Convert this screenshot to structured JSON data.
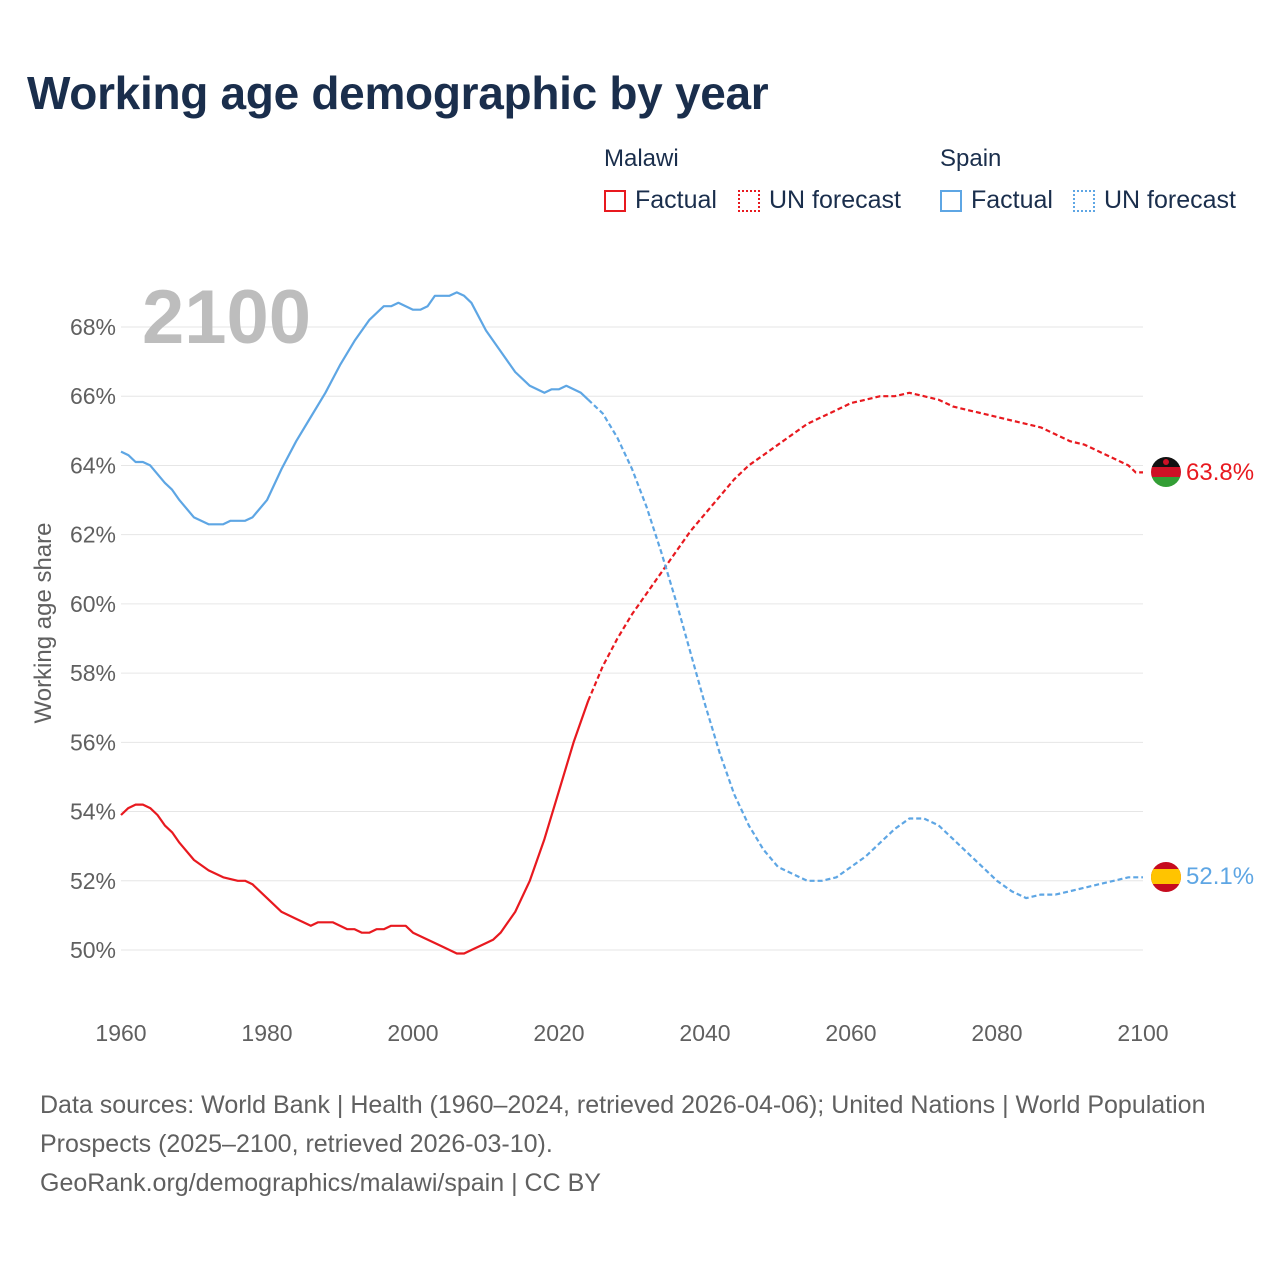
{
  "title": "Working age demographic by year",
  "legend": {
    "malawi": {
      "name": "Malawi",
      "factual": "Factual",
      "forecast": "UN forecast",
      "color": "#e8191f"
    },
    "spain": {
      "name": "Spain",
      "factual": "Factual",
      "forecast": "UN forecast",
      "color": "#5ea6e4"
    }
  },
  "footer": {
    "sources": "Data sources: World Bank | Health (1960–2024, retrieved 2026-04-06); United Nations | World Population Prospects (2025–2100, retrieved 2026-03-10).",
    "credit": "GeoRank.org/demographics/malawi/spain | CC BY"
  },
  "chart_data": {
    "type": "line",
    "year_label": "2100",
    "ylabel": "Working age share",
    "xlim": [
      1960,
      2100
    ],
    "ylim": [
      49,
      69.5
    ],
    "x_ticks": [
      "1960",
      "1980",
      "2000",
      "2020",
      "2040",
      "2060",
      "2080",
      "2100"
    ],
    "y_ticks": [
      "50%",
      "52%",
      "54%",
      "56%",
      "58%",
      "60%",
      "62%",
      "64%",
      "66%",
      "68%"
    ],
    "grid": true,
    "series": [
      {
        "name": "Malawi",
        "color": "#e8191f",
        "end_label": "63.8%",
        "end_value": 63.8,
        "factual": {
          "x": [
            1960,
            1961,
            1962,
            1963,
            1964,
            1965,
            1966,
            1967,
            1968,
            1970,
            1972,
            1974,
            1976,
            1977,
            1978,
            1980,
            1982,
            1984,
            1986,
            1987,
            1988,
            1989,
            1990,
            1991,
            1992,
            1993,
            1994,
            1995,
            1996,
            1997,
            1998,
            1999,
            2000,
            2002,
            2004,
            2006,
            2007,
            2008,
            2010,
            2011,
            2012,
            2013,
            2014,
            2016,
            2018,
            2020,
            2022,
            2024
          ],
          "y": [
            53.9,
            54.1,
            54.2,
            54.2,
            54.1,
            53.9,
            53.6,
            53.4,
            53.1,
            52.6,
            52.3,
            52.1,
            52.0,
            52.0,
            51.9,
            51.5,
            51.1,
            50.9,
            50.7,
            50.8,
            50.8,
            50.8,
            50.7,
            50.6,
            50.6,
            50.5,
            50.5,
            50.6,
            50.6,
            50.7,
            50.7,
            50.7,
            50.5,
            50.3,
            50.1,
            49.9,
            49.9,
            50.0,
            50.2,
            50.3,
            50.5,
            50.8,
            51.1,
            52.0,
            53.2,
            54.6,
            56.0,
            57.2
          ]
        },
        "forecast": {
          "x": [
            2024,
            2026,
            2028,
            2030,
            2032,
            2034,
            2036,
            2038,
            2040,
            2042,
            2044,
            2046,
            2048,
            2050,
            2052,
            2054,
            2056,
            2058,
            2060,
            2062,
            2064,
            2066,
            2068,
            2070,
            2072,
            2074,
            2076,
            2078,
            2080,
            2082,
            2084,
            2086,
            2088,
            2090,
            2092,
            2094,
            2096,
            2098,
            2099,
            2100
          ],
          "y": [
            57.2,
            58.2,
            59.0,
            59.7,
            60.3,
            60.9,
            61.5,
            62.1,
            62.6,
            63.1,
            63.6,
            64.0,
            64.3,
            64.6,
            64.9,
            65.2,
            65.4,
            65.6,
            65.8,
            65.9,
            66.0,
            66.0,
            66.1,
            66.0,
            65.9,
            65.7,
            65.6,
            65.5,
            65.4,
            65.3,
            65.2,
            65.1,
            64.9,
            64.7,
            64.6,
            64.4,
            64.2,
            64.0,
            63.8,
            63.8
          ]
        }
      },
      {
        "name": "Spain",
        "color": "#5ea6e4",
        "end_label": "52.1%",
        "end_value": 52.1,
        "factual": {
          "x": [
            1960,
            1961,
            1962,
            1963,
            1964,
            1966,
            1967,
            1968,
            1970,
            1972,
            1974,
            1975,
            1977,
            1978,
            1980,
            1982,
            1984,
            1986,
            1988,
            1990,
            1992,
            1994,
            1996,
            1997,
            1998,
            1999,
            2000,
            2001,
            2002,
            2003,
            2004,
            2005,
            2006,
            2007,
            2008,
            2010,
            2012,
            2014,
            2016,
            2018,
            2019,
            2020,
            2021,
            2022,
            2023,
            2024
          ],
          "y": [
            64.4,
            64.3,
            64.1,
            64.1,
            64.0,
            63.5,
            63.3,
            63.0,
            62.5,
            62.3,
            62.3,
            62.4,
            62.4,
            62.5,
            63.0,
            63.9,
            64.7,
            65.4,
            66.1,
            66.9,
            67.6,
            68.2,
            68.6,
            68.6,
            68.7,
            68.6,
            68.5,
            68.5,
            68.6,
            68.9,
            68.9,
            68.9,
            69.0,
            68.9,
            68.7,
            67.9,
            67.3,
            66.7,
            66.3,
            66.1,
            66.2,
            66.2,
            66.3,
            66.2,
            66.1,
            65.9
          ]
        },
        "forecast": {
          "x": [
            2024,
            2026,
            2028,
            2030,
            2032,
            2034,
            2036,
            2038,
            2040,
            2042,
            2044,
            2046,
            2048,
            2050,
            2052,
            2054,
            2056,
            2058,
            2060,
            2062,
            2064,
            2066,
            2068,
            2070,
            2072,
            2074,
            2076,
            2078,
            2080,
            2082,
            2084,
            2086,
            2088,
            2090,
            2092,
            2094,
            2096,
            2098,
            2100
          ],
          "y": [
            65.9,
            65.5,
            64.8,
            63.9,
            62.8,
            61.5,
            60.1,
            58.6,
            57.1,
            55.7,
            54.5,
            53.6,
            52.9,
            52.4,
            52.2,
            52.0,
            52.0,
            52.1,
            52.4,
            52.7,
            53.1,
            53.5,
            53.8,
            53.8,
            53.6,
            53.2,
            52.8,
            52.4,
            52.0,
            51.7,
            51.5,
            51.6,
            51.6,
            51.7,
            51.8,
            51.9,
            52.0,
            52.1,
            52.1
          ]
        }
      }
    ]
  }
}
